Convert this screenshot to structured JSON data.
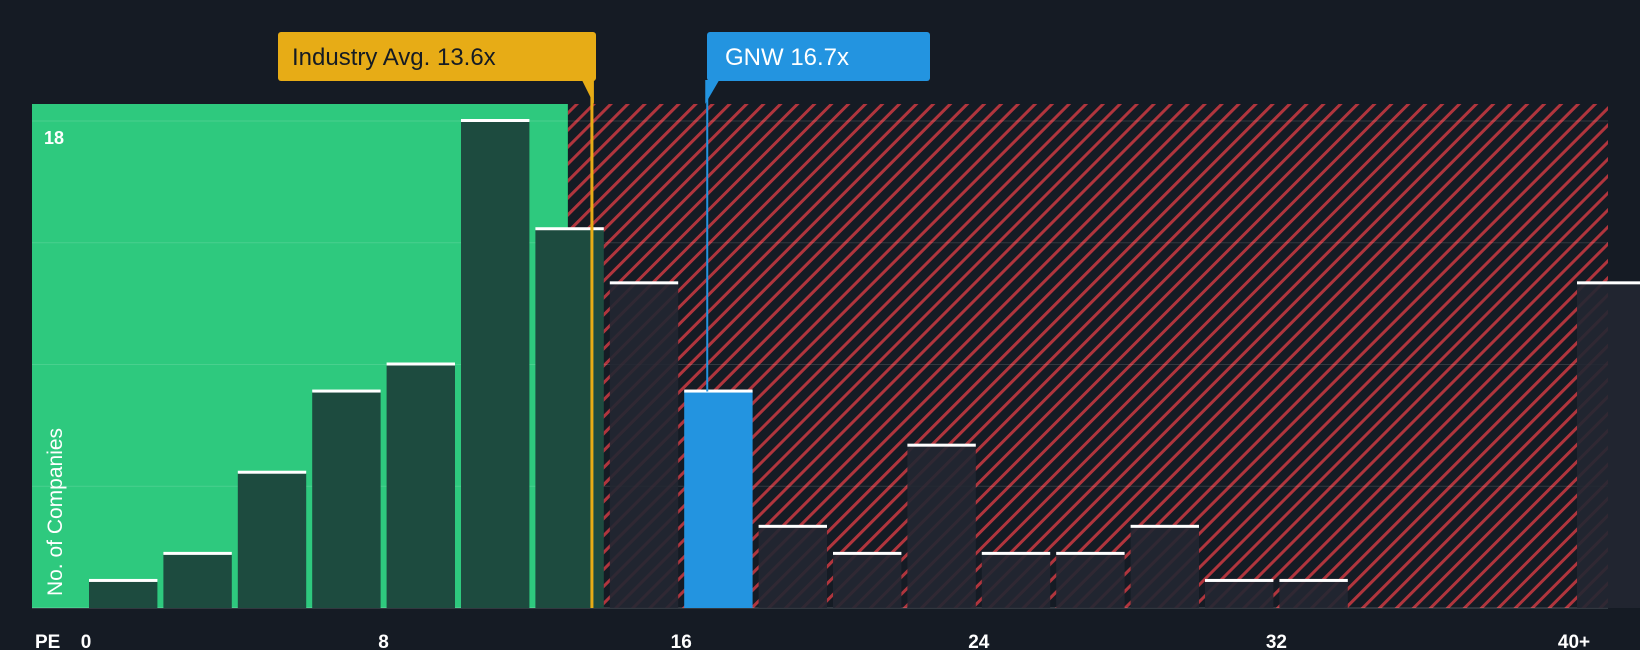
{
  "chart_data": {
    "type": "bar",
    "x_axis_label": "PE",
    "y_axis_label": "No. of Companies",
    "x_tick_labels": [
      "0",
      "8",
      "16",
      "24",
      "32",
      "40+"
    ],
    "x_tick_values": [
      0,
      8,
      16,
      24,
      32,
      40
    ],
    "y_tick_label": "18",
    "y_max": 18,
    "bin_width": 2,
    "bins": [
      {
        "start": 0,
        "count": 1
      },
      {
        "start": 2,
        "count": 2
      },
      {
        "start": 4,
        "count": 5
      },
      {
        "start": 6,
        "count": 8
      },
      {
        "start": 8,
        "count": 9
      },
      {
        "start": 10,
        "count": 18
      },
      {
        "start": 12,
        "count": 14
      },
      {
        "start": 14,
        "count": 12
      },
      {
        "start": 16,
        "count": 8
      },
      {
        "start": 18,
        "count": 3
      },
      {
        "start": 20,
        "count": 2
      },
      {
        "start": 22,
        "count": 6
      },
      {
        "start": 24,
        "count": 2
      },
      {
        "start": 26,
        "count": 2
      },
      {
        "start": 28,
        "count": 3
      },
      {
        "start": 30,
        "count": 1
      },
      {
        "start": 32,
        "count": 1
      },
      {
        "start": 40,
        "count": 12
      }
    ],
    "industry_avg": {
      "label": "Industry Avg. 13.6x",
      "value": 13.6
    },
    "company": {
      "label": "GNW 16.7x",
      "value": 16.7
    },
    "colors": {
      "background": "#151b24",
      "good_zone": "#2ec97e",
      "bad_zone": "#b0353d",
      "bar_good": "#1d4b3f",
      "bar_bad": "#222732",
      "company_bar": "#2394e0",
      "industry_marker": "#e7ac16",
      "bar_cap": "#ffffff",
      "axis_text": "#ffffff"
    }
  }
}
